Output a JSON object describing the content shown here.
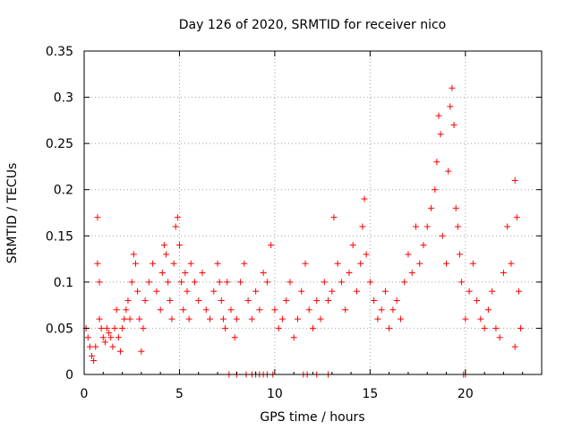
{
  "chart_data": {
    "type": "scatter",
    "title": "Day 126 of 2020, SRMTID for receiver nico",
    "xlabel": "GPS time / hours",
    "ylabel": "SRMTID / TECUs",
    "xlim": [
      0,
      24
    ],
    "ylim": [
      0,
      0.35
    ],
    "xticks": [
      0,
      5,
      10,
      15,
      20
    ],
    "xtick_labels": [
      "0",
      "5",
      "10",
      "15",
      "20"
    ],
    "yticks": [
      0,
      0.05,
      0.1,
      0.15,
      0.2,
      0.25,
      0.3,
      0.35
    ],
    "ytick_labels": [
      "0",
      "0.05",
      "0.1",
      "0.15",
      "0.2",
      "0.25",
      "0.3",
      "0.35"
    ],
    "grid": true,
    "marker": "+",
    "series": [
      {
        "name": "SRMTID",
        "color": "#ff0000",
        "points": [
          [
            0.1,
            0.05
          ],
          [
            0.2,
            0.04
          ],
          [
            0.3,
            0.03
          ],
          [
            0.4,
            0.02
          ],
          [
            0.5,
            0.015
          ],
          [
            0.6,
            0.03
          ],
          [
            0.7,
            0.12
          ],
          [
            0.7,
            0.17
          ],
          [
            0.8,
            0.1
          ],
          [
            0.8,
            0.06
          ],
          [
            0.9,
            0.05
          ],
          [
            1.0,
            0.04
          ],
          [
            1.1,
            0.035
          ],
          [
            1.2,
            0.05
          ],
          [
            1.3,
            0.045
          ],
          [
            1.4,
            0.04
          ],
          [
            1.5,
            0.03
          ],
          [
            1.6,
            0.05
          ],
          [
            1.7,
            0.07
          ],
          [
            1.8,
            0.04
          ],
          [
            1.9,
            0.025
          ],
          [
            2.0,
            0.05
          ],
          [
            2.1,
            0.06
          ],
          [
            2.2,
            0.07
          ],
          [
            2.3,
            0.08
          ],
          [
            2.4,
            0.06
          ],
          [
            2.5,
            0.1
          ],
          [
            2.6,
            0.13
          ],
          [
            2.7,
            0.12
          ],
          [
            2.8,
            0.09
          ],
          [
            2.9,
            0.06
          ],
          [
            3.0,
            0.025
          ],
          [
            3.1,
            0.05
          ],
          [
            3.2,
            0.08
          ],
          [
            3.4,
            0.1
          ],
          [
            3.6,
            0.12
          ],
          [
            3.8,
            0.09
          ],
          [
            4.0,
            0.07
          ],
          [
            4.1,
            0.11
          ],
          [
            4.2,
            0.14
          ],
          [
            4.3,
            0.13
          ],
          [
            4.4,
            0.1
          ],
          [
            4.5,
            0.08
          ],
          [
            4.6,
            0.06
          ],
          [
            4.7,
            0.12
          ],
          [
            4.8,
            0.16
          ],
          [
            4.9,
            0.17
          ],
          [
            5.0,
            0.14
          ],
          [
            5.1,
            0.1
          ],
          [
            5.2,
            0.07
          ],
          [
            5.3,
            0.11
          ],
          [
            5.4,
            0.09
          ],
          [
            5.5,
            0.06
          ],
          [
            5.6,
            0.12
          ],
          [
            5.8,
            0.1
          ],
          [
            6.0,
            0.08
          ],
          [
            6.2,
            0.11
          ],
          [
            6.4,
            0.07
          ],
          [
            6.6,
            0.06
          ],
          [
            6.8,
            0.09
          ],
          [
            7.0,
            0.12
          ],
          [
            7.1,
            0.1
          ],
          [
            7.2,
            0.08
          ],
          [
            7.3,
            0.06
          ],
          [
            7.4,
            0.05
          ],
          [
            7.5,
            0.1
          ],
          [
            7.7,
            0.07
          ],
          [
            7.9,
            0.04
          ],
          [
            8.0,
            0.06
          ],
          [
            8.2,
            0.1
          ],
          [
            8.4,
            0.12
          ],
          [
            8.6,
            0.08
          ],
          [
            8.8,
            0.06
          ],
          [
            9.0,
            0.09
          ],
          [
            9.2,
            0.07
          ],
          [
            9.4,
            0.11
          ],
          [
            9.6,
            0.1
          ],
          [
            9.8,
            0.14
          ],
          [
            10.0,
            0.07
          ],
          [
            10.2,
            0.05
          ],
          [
            10.4,
            0.06
          ],
          [
            10.6,
            0.08
          ],
          [
            10.8,
            0.1
          ],
          [
            11.0,
            0.04
          ],
          [
            11.2,
            0.06
          ],
          [
            11.4,
            0.09
          ],
          [
            11.6,
            0.12
          ],
          [
            11.8,
            0.07
          ],
          [
            12.0,
            0.05
          ],
          [
            12.2,
            0.08
          ],
          [
            12.4,
            0.06
          ],
          [
            12.6,
            0.1
          ],
          [
            12.8,
            0.08
          ],
          [
            13.0,
            0.09
          ],
          [
            13.1,
            0.17
          ],
          [
            13.3,
            0.12
          ],
          [
            13.5,
            0.1
          ],
          [
            13.7,
            0.07
          ],
          [
            13.9,
            0.11
          ],
          [
            14.1,
            0.14
          ],
          [
            14.3,
            0.09
          ],
          [
            14.5,
            0.12
          ],
          [
            14.6,
            0.16
          ],
          [
            14.7,
            0.19
          ],
          [
            14.8,
            0.13
          ],
          [
            15.0,
            0.1
          ],
          [
            15.2,
            0.08
          ],
          [
            15.4,
            0.06
          ],
          [
            15.6,
            0.07
          ],
          [
            15.8,
            0.09
          ],
          [
            16.0,
            0.05
          ],
          [
            16.2,
            0.07
          ],
          [
            16.4,
            0.08
          ],
          [
            16.6,
            0.06
          ],
          [
            16.8,
            0.1
          ],
          [
            17.0,
            0.13
          ],
          [
            17.2,
            0.11
          ],
          [
            17.4,
            0.16
          ],
          [
            17.6,
            0.12
          ],
          [
            17.8,
            0.14
          ],
          [
            18.0,
            0.16
          ],
          [
            18.2,
            0.18
          ],
          [
            18.4,
            0.2
          ],
          [
            18.5,
            0.23
          ],
          [
            18.6,
            0.28
          ],
          [
            18.7,
            0.26
          ],
          [
            18.8,
            0.15
          ],
          [
            19.0,
            0.12
          ],
          [
            19.1,
            0.22
          ],
          [
            19.2,
            0.29
          ],
          [
            19.3,
            0.31
          ],
          [
            19.4,
            0.27
          ],
          [
            19.5,
            0.18
          ],
          [
            19.6,
            0.16
          ],
          [
            19.7,
            0.13
          ],
          [
            19.8,
            0.1
          ],
          [
            20.0,
            0.06
          ],
          [
            20.2,
            0.09
          ],
          [
            20.4,
            0.12
          ],
          [
            20.6,
            0.08
          ],
          [
            20.8,
            0.06
          ],
          [
            21.0,
            0.05
          ],
          [
            21.2,
            0.07
          ],
          [
            21.4,
            0.09
          ],
          [
            21.6,
            0.05
          ],
          [
            21.8,
            0.04
          ],
          [
            22.0,
            0.11
          ],
          [
            22.2,
            0.16
          ],
          [
            22.4,
            0.12
          ],
          [
            22.6,
            0.21
          ],
          [
            22.7,
            0.17
          ],
          [
            22.8,
            0.09
          ],
          [
            22.9,
            0.05
          ],
          [
            22.6,
            0.03
          ],
          [
            7.6,
            0.0
          ],
          [
            8.0,
            0.0
          ],
          [
            8.5,
            0.0
          ],
          [
            8.8,
            0.0
          ],
          [
            9.0,
            0.0
          ],
          [
            9.2,
            0.0
          ],
          [
            9.4,
            0.0
          ],
          [
            9.6,
            0.0
          ],
          [
            9.9,
            0.0
          ],
          [
            11.5,
            0.0
          ],
          [
            11.7,
            0.0
          ],
          [
            12.2,
            0.0
          ],
          [
            12.8,
            0.0
          ],
          [
            19.9,
            0.0
          ],
          [
            20.0,
            0.0
          ]
        ]
      }
    ]
  }
}
